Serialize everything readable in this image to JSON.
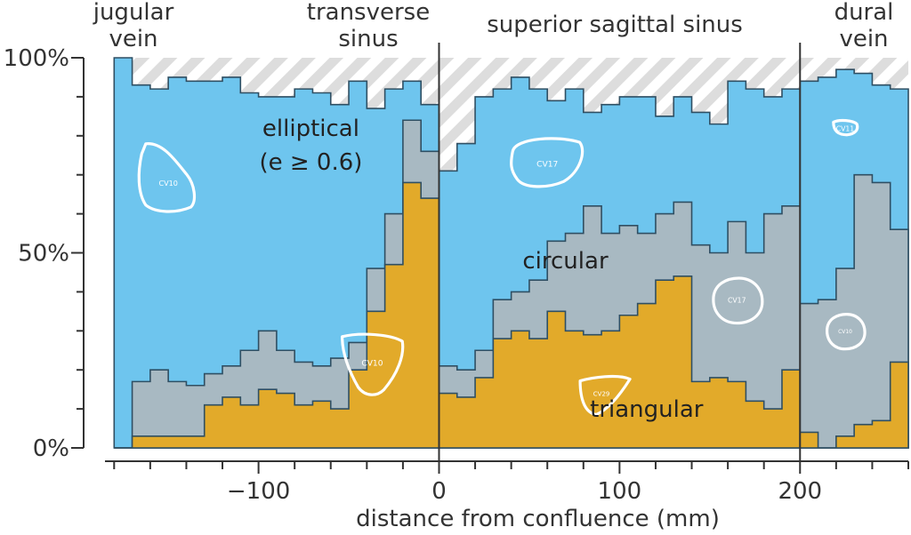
{
  "chart_data": {
    "type": "area",
    "subtype": "stacked-step-100-percent",
    "title": "",
    "xlabel": "distance from confluence (mm)",
    "ylabel": "",
    "xlim": [
      -190,
      260
    ],
    "ylim": [
      0,
      100
    ],
    "x_ticks": [
      {
        "value": -100,
        "label": "−100"
      },
      {
        "value": 0,
        "label": "0"
      },
      {
        "value": 100,
        "label": "100"
      },
      {
        "value": 200,
        "label": "200"
      }
    ],
    "y_ticks": [
      {
        "value": 0,
        "label": "0%"
      },
      {
        "value": 50,
        "label": "50%"
      },
      {
        "value": 100,
        "label": "100%"
      }
    ],
    "grid": false,
    "legend": "none",
    "bin_width_mm": 10,
    "regions": [
      {
        "label_lines": [
          "jugular",
          "vein"
        ],
        "x_start": -190,
        "x_end": -120
      },
      {
        "label_lines": [
          "transverse",
          "sinus"
        ],
        "x_start": -120,
        "x_end": 0
      },
      {
        "label_lines": [
          "superior sagittal sinus"
        ],
        "x_start": 0,
        "x_end": 200
      },
      {
        "label_lines": [
          "dural",
          "vein"
        ],
        "x_start": 200,
        "x_end": 260
      }
    ],
    "boundaries": [
      0,
      200
    ],
    "segments": [
      {
        "x": [
          -180,
          -170,
          -160,
          -150,
          -140,
          -130,
          -120,
          -110,
          -100,
          -90,
          -80,
          -70,
          -60,
          -50,
          -40,
          -30,
          -20,
          -10
        ],
        "triangular": [
          0,
          3,
          3,
          3,
          3,
          11,
          13,
          11,
          15,
          14,
          11,
          12,
          10,
          20,
          35,
          47,
          68,
          64
        ],
        "circular": [
          0,
          17,
          20,
          17,
          16,
          19,
          21,
          25,
          30,
          25,
          22,
          21,
          23,
          27,
          46,
          60,
          84,
          76
        ],
        "elliptical": [
          100,
          93,
          92,
          95,
          94,
          94,
          95,
          91,
          90,
          90,
          92,
          91,
          88,
          94,
          87,
          92,
          94,
          88
        ]
      },
      {
        "x": [
          0,
          10,
          20,
          30,
          40,
          50,
          60,
          70,
          80,
          90,
          100,
          110,
          120,
          130,
          140,
          150,
          160,
          170,
          180,
          190
        ],
        "triangular": [
          14,
          13,
          18,
          28,
          30,
          28,
          35,
          30,
          29,
          30,
          34,
          37,
          43,
          44,
          17,
          18,
          17,
          12,
          10,
          20
        ],
        "circular": [
          21,
          20,
          25,
          38,
          40,
          43,
          53,
          55,
          62,
          55,
          57,
          55,
          60,
          63,
          52,
          50,
          58,
          50,
          60,
          62
        ],
        "elliptical": [
          71,
          78,
          90,
          92,
          95,
          92,
          89,
          92,
          86,
          88,
          90,
          90,
          85,
          90,
          86,
          83,
          94,
          92,
          90,
          92
        ]
      },
      {
        "x": [
          200,
          210,
          220,
          230,
          240,
          250
        ],
        "triangular": [
          4,
          0,
          3,
          6,
          7,
          22
        ],
        "circular": [
          37,
          38,
          46,
          70,
          68,
          56
        ],
        "elliptical": [
          94,
          95,
          97,
          96,
          93,
          92
        ]
      }
    ],
    "series": [
      {
        "name": "triangular",
        "color": "#e2aa2a"
      },
      {
        "name": "circular",
        "color": "#a8b9c2"
      },
      {
        "name": "elliptical",
        "color": "#6ec5ee"
      }
    ],
    "category_labels": [
      {
        "lines": [
          "elliptical",
          "(e ≥ 0.6)"
        ],
        "series": "elliptical",
        "x": -71,
        "y": 80
      },
      {
        "lines": [
          "circular"
        ],
        "series": "circular",
        "x": 70,
        "y": 46
      },
      {
        "lines": [
          "triangular"
        ],
        "series": "triangular",
        "x": 115,
        "y": 8
      }
    ],
    "outline_icons": [
      {
        "label": "CV10",
        "x": -150,
        "y": 68
      },
      {
        "label": "CV10",
        "x": -37,
        "y": 22
      },
      {
        "label": "CV17",
        "x": 60,
        "y": 73
      },
      {
        "label": "CV29",
        "x": 90,
        "y": 14
      },
      {
        "label": "CV17",
        "x": 165,
        "y": 38
      },
      {
        "label": "CV11",
        "x": 225,
        "y": 82
      },
      {
        "label": "CV10",
        "x": 225,
        "y": 30
      }
    ],
    "colors": {
      "hatch": "#dddddd",
      "axis": "#333333",
      "step_edge": "#2f4f63"
    }
  }
}
